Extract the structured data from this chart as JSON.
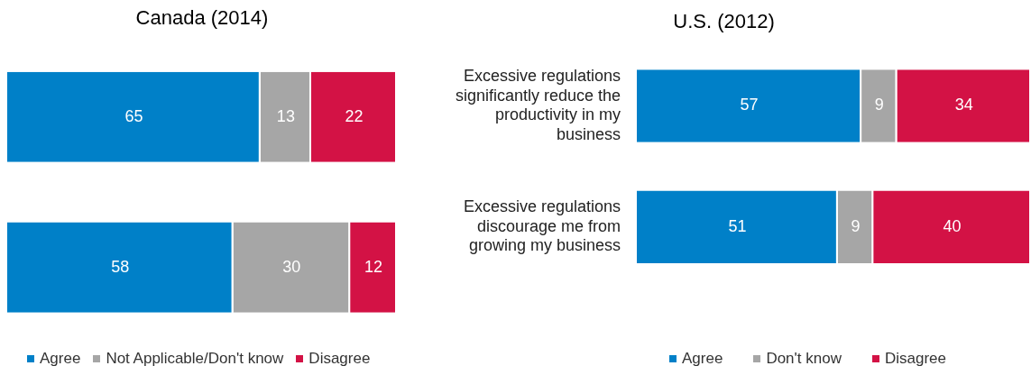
{
  "chart_data": [
    {
      "type": "bar",
      "title": "Canada (2014)",
      "orientation": "horizontal",
      "stacked": true,
      "data_labels": true,
      "grid": false,
      "legend": "bottom",
      "tick_labels": false,
      "categories": [
        null,
        null
      ],
      "series": [
        {
          "name": "Agree",
          "color": "#0080c8",
          "values": [
            65,
            58
          ]
        },
        {
          "name": "Not Applicable/Don't know",
          "color": "#a6a6a6",
          "values": [
            13,
            30
          ]
        },
        {
          "name": "Disagree",
          "color": "#d31245",
          "values": [
            22,
            12
          ]
        }
      ]
    },
    {
      "type": "bar",
      "title": "U.S. (2012)",
      "orientation": "horizontal",
      "stacked": true,
      "data_labels": true,
      "grid": false,
      "legend": "bottom",
      "tick_labels": "y",
      "categories": [
        "Excessive regulations significantly reduce the productivity in my business",
        "Excessive regulations discourage me from growing my business"
      ],
      "series": [
        {
          "name": "Agree",
          "color": "#0080c8",
          "values": [
            57,
            51
          ]
        },
        {
          "name": "Don't know",
          "color": "#a6a6a6",
          "values": [
            9,
            9
          ]
        },
        {
          "name": "Disagree",
          "color": "#d31245",
          "values": [
            34,
            40
          ]
        }
      ]
    }
  ]
}
